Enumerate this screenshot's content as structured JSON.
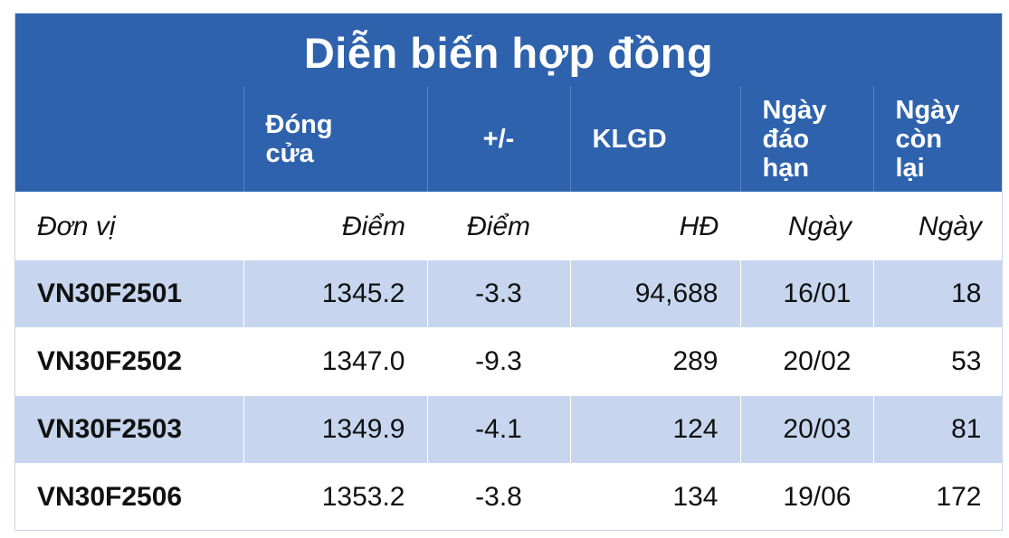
{
  "title": "Diễn biến hợp đồng",
  "columns": [
    {
      "label": [
        "",
        ""
      ]
    },
    {
      "label": [
        "Đóng",
        "cửa"
      ]
    },
    {
      "label": [
        "+/-"
      ]
    },
    {
      "label": [
        "KLGD"
      ]
    },
    {
      "label": [
        "Ngày",
        "đáo",
        "hạn"
      ]
    },
    {
      "label": [
        "Ngày",
        "còn",
        "lại"
      ]
    }
  ],
  "units": [
    "Đơn vị",
    "Điểm",
    "Điểm",
    "HĐ",
    "Ngày",
    "Ngày"
  ],
  "rows": [
    {
      "code": "VN30F2501",
      "close": "1345.2",
      "change": "-3.3",
      "volume": "94,688",
      "expiry": "16/01",
      "days_left": "18"
    },
    {
      "code": "VN30F2502",
      "close": "1347.0",
      "change": "-9.3",
      "volume": "289",
      "expiry": "20/02",
      "days_left": "53"
    },
    {
      "code": "VN30F2503",
      "close": "1349.9",
      "change": "-4.1",
      "volume": "124",
      "expiry": "20/03",
      "days_left": "81"
    },
    {
      "code": "VN30F2506",
      "close": "1353.2",
      "change": "-3.8",
      "volume": "134",
      "expiry": "19/06",
      "days_left": "172"
    }
  ]
}
